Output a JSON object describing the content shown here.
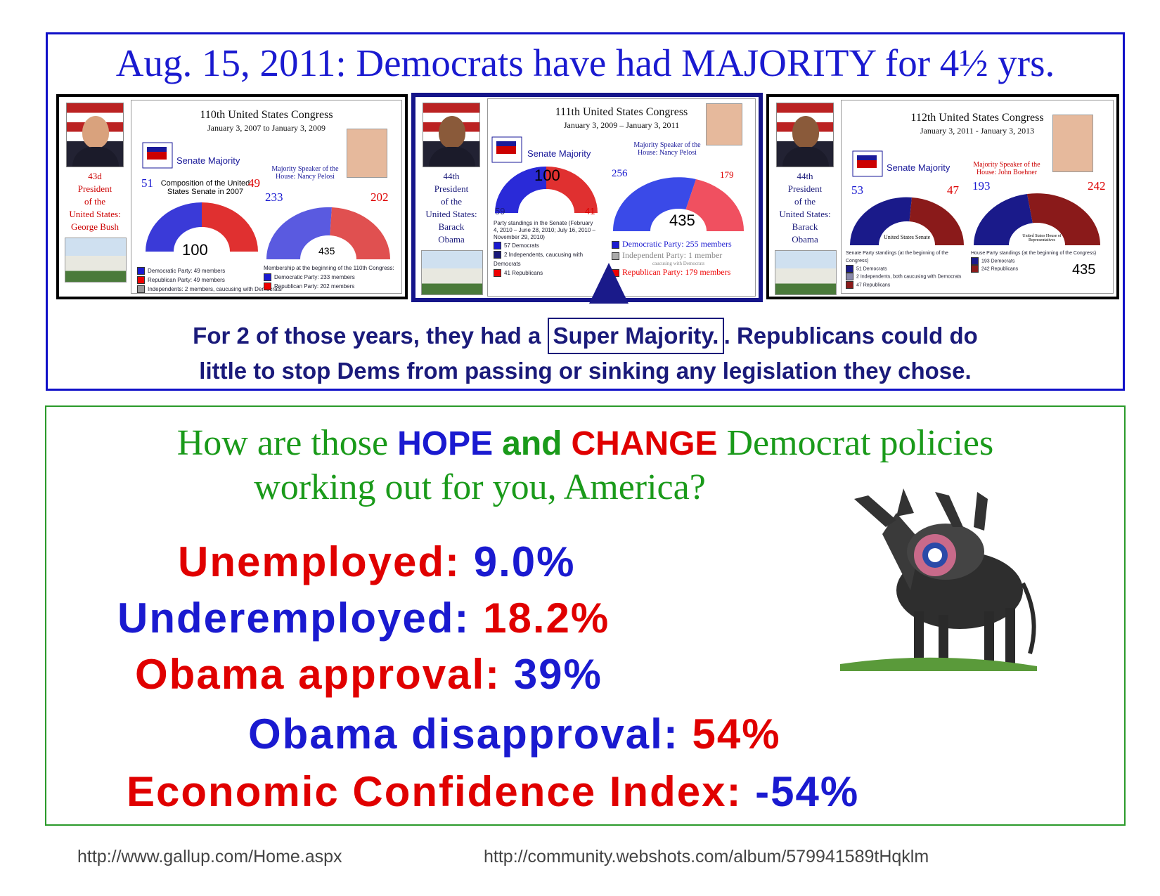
{
  "headline": "Aug. 15, 2011: Democrats have had MAJORITY for 4½ yrs.",
  "congresses": [
    {
      "president": [
        "43d",
        "President",
        "of the",
        "United States:",
        "George Bush"
      ],
      "title": "110th United States Congress",
      "dates": "January 3, 2007 to January 3, 2009",
      "senate_label": "Senate Majority",
      "speaker": "Majority Speaker of the House: Nancy Pelosi",
      "senate_dem": "51",
      "senate_rep": "49",
      "senate_caption": "Composition of the United States Senate in 2007",
      "senate_total": "100",
      "house_dem": "233",
      "house_rep": "202",
      "house_total": "435",
      "senate_legend": [
        "Democratic Party: 49 members",
        "Republican Party: 49 members",
        "Independents: 2 members, caucusing with Democrats"
      ],
      "house_legend_title": "Membership at the beginning of the 110th Congress:",
      "house_legend": [
        "Democratic Party: 233 members",
        "Republican Party: 202 members"
      ]
    },
    {
      "president": [
        "44th",
        "President",
        "of the",
        "United States:",
        "Barack",
        "Obama"
      ],
      "title": "111th United States Congress",
      "dates": "January 3, 2009 – January 3, 2011",
      "senate_label": "Senate Majority",
      "speaker": "Majority Speaker of the House: Nancy Pelosi",
      "senate_total": "100",
      "senate_dem": "59",
      "senate_rep": "41",
      "senate_caption": "Party standings in the Senate (February 4, 2010 – June 28, 2010; July 16, 2010 – November 29, 2010)",
      "senate_legend": [
        "57 Democrats",
        "2 Independents, caucusing with Democrats",
        "41 Republicans"
      ],
      "house_dem": "256",
      "house_rep": "179",
      "house_total": "435",
      "house_legend": [
        "Democratic Party: 255 members",
        "Independent Party: 1 member",
        "Republican Party: 179 members"
      ],
      "house_legend_note": "caucusing with Democrats"
    },
    {
      "president": [
        "44th",
        "President",
        "of the",
        "United States:",
        "Barack",
        "Obama"
      ],
      "title": "112th United States Congress",
      "dates": "January 3, 2011 - January 3, 2013",
      "senate_label": "Senate Majority",
      "speaker": "Majority Speaker of the House: John Boehner",
      "senate_dem": "53",
      "senate_rep": "47",
      "senate_chamber_label": "United States Senate",
      "senate_legend_title": "Senate Party standings (at the beginning of the Congress)",
      "senate_legend": [
        "51 Democrats",
        "2 Independents, both caucusing with Democrats",
        "47 Republicans"
      ],
      "house_dem": "193",
      "house_rep": "242",
      "house_total": "435",
      "house_chamber_label": "United States House of Representatives",
      "house_legend_title": "House Party standings (at the beginning of the Congress)",
      "house_legend": [
        "193 Democrats",
        "242 Republicans"
      ]
    }
  ],
  "super_majority": {
    "prefix": "For 2 of those years, they had a",
    "boxed": "Super Majority",
    "suffix": ". Republicans could do",
    "line2": "little to stop Dems from passing or sinking any legislation they chose."
  },
  "question": {
    "pre": "How are those",
    "hope": "HOPE",
    "and": "and",
    "change": "CHANGE",
    "post": "Democrat policies",
    "line2": "working out for you, America?"
  },
  "stats": [
    {
      "label": "Unemployed:",
      "value": "9.0%"
    },
    {
      "label": "Underemployed:",
      "value": "18.2%"
    },
    {
      "label": "Obama approval:",
      "value": "39%"
    },
    {
      "label": "Obama disapproval:",
      "value": "54%"
    },
    {
      "label": "Economic Confidence Index:",
      "value": "-54%"
    }
  ],
  "sources": [
    "http://www.gallup.com/Home.aspx",
    "http://community.webshots.com/album/579941589tHqklm"
  ],
  "colors": {
    "blue": "#1a1ad0",
    "red": "#e00000",
    "green": "#1a9a1a",
    "navy": "#1a1a7a"
  }
}
